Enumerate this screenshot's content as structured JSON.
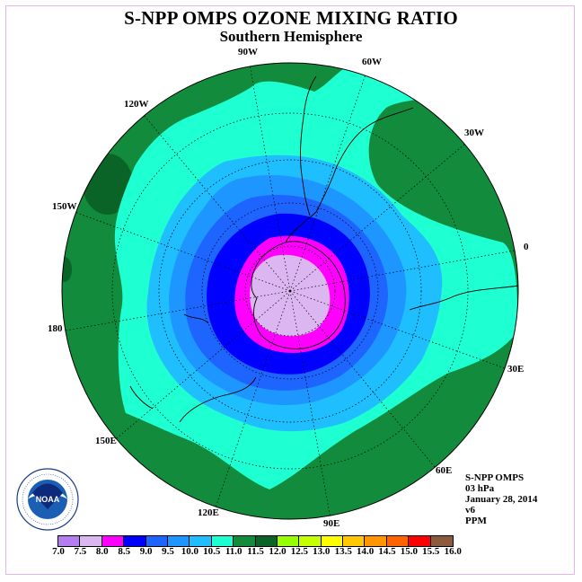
{
  "header": {
    "title": "S-NPP OMPS OZONE MIXING RATIO",
    "subtitle": "Southern Hemisphere"
  },
  "longitude_labels": [
    "90W",
    "60W",
    "30W",
    "0",
    "30E",
    "60E",
    "90E",
    "120E",
    "150E",
    "180",
    "150W",
    "120W"
  ],
  "info": {
    "instrument": "S-NPP OMPS",
    "level": "03 hPa",
    "date": "January 28, 2014",
    "version": "v6",
    "units": "PPM"
  },
  "logo": {
    "text": "NOAA",
    "ring_text": "NATIONAL OCEANIC AND ATMOSPHERIC ADMINISTRATION · U.S. DEPARTMENT OF COMMERCE"
  },
  "colorbar": {
    "ticks": [
      "7.0",
      "7.5",
      "8.0",
      "8.5",
      "9.0",
      "9.5",
      "10.0",
      "10.5",
      "11.0",
      "11.5",
      "12.0",
      "12.5",
      "13.0",
      "13.5",
      "14.0",
      "14.5",
      "15.0",
      "15.5",
      "16.0"
    ],
    "colors": [
      "#b47ef0",
      "#dcb6f0",
      "#ff00ff",
      "#0000ff",
      "#1e64ff",
      "#1e96ff",
      "#1ebeff",
      "#1effd2",
      "#128c3c",
      "#0a6428",
      "#96ff00",
      "#c8ff00",
      "#ffff00",
      "#ffc800",
      "#ff9600",
      "#ff6400",
      "#ff0000",
      "#8c5a3c"
    ]
  },
  "map_colors": {
    "ocean_green": "#128c3c",
    "dark_green": "#0a6428",
    "cyan": "#1effd2",
    "sky": "#1ebeff",
    "mid_blue": "#1e96ff",
    "blue": "#1e64ff",
    "deep_blue": "#0000ff",
    "magenta": "#ff00ff",
    "lavender": "#dcb6f0"
  }
}
